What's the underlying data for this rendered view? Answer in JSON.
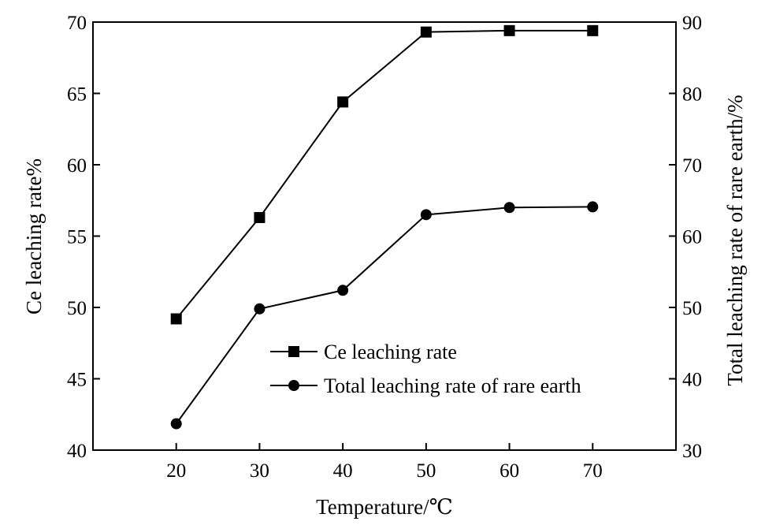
{
  "chart_data": {
    "type": "line",
    "x": [
      20,
      30,
      40,
      50,
      60,
      70
    ],
    "xlabel": "Temperature/℃",
    "ylabel_left": "Ce leaching rate%",
    "ylabel_right": "Total leaching rate of rare earth/%",
    "xlim": [
      10,
      80
    ],
    "ylim_left": [
      40,
      70
    ],
    "ylim_right": [
      30,
      90
    ],
    "x_ticks": [
      20,
      30,
      40,
      50,
      60,
      70
    ],
    "y_ticks_left": [
      40,
      45,
      50,
      55,
      60,
      65,
      70
    ],
    "y_ticks_right": [
      30,
      40,
      50,
      60,
      70,
      80,
      90
    ],
    "grid": false,
    "legend_position": "center-right",
    "series": [
      {
        "name": "Ce leaching rate",
        "axis": "left",
        "marker": "square",
        "values": [
          49.2,
          56.3,
          64.4,
          69.3,
          69.4,
          69.4
        ]
      },
      {
        "name": "Total leaching rate of rare earth",
        "axis": "right",
        "marker": "circle",
        "values": [
          33.7,
          49.8,
          52.4,
          63.0,
          64.0,
          64.1
        ]
      }
    ]
  }
}
